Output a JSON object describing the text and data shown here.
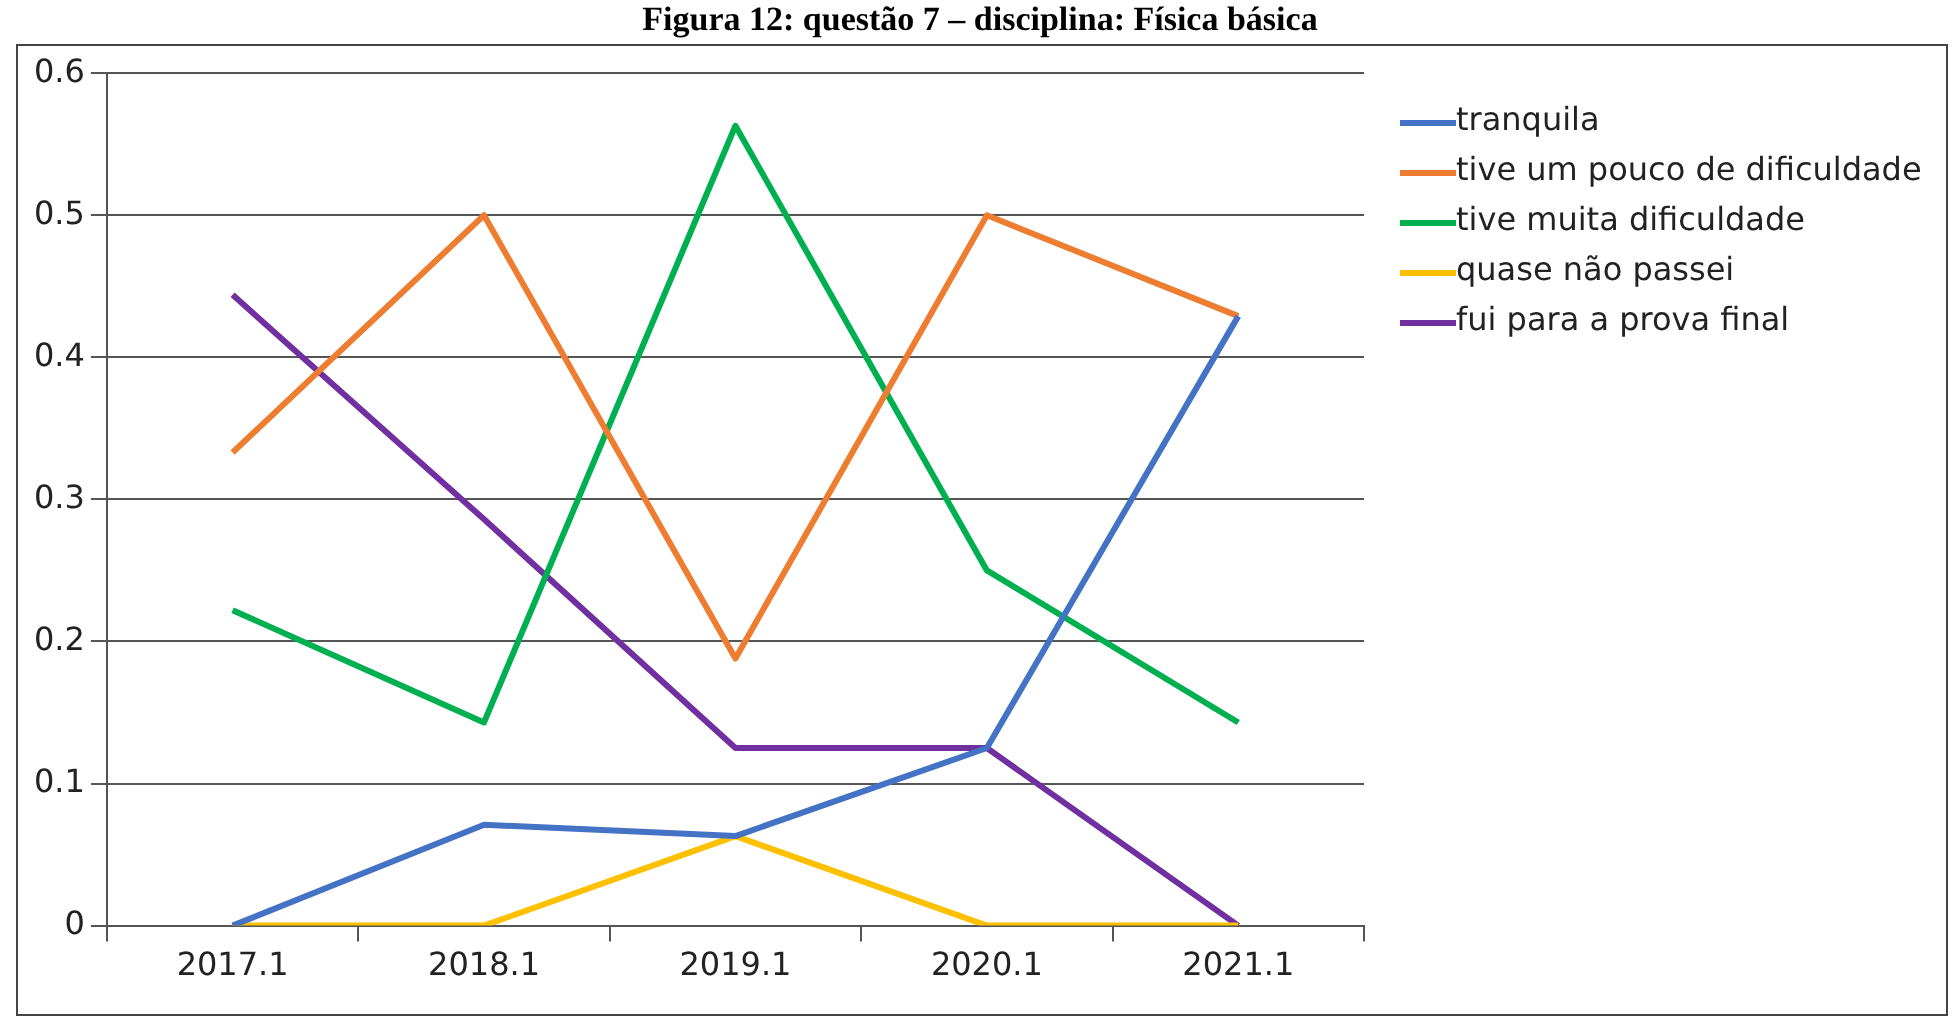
{
  "chart_data": {
    "type": "line",
    "title": "Figura 12: questão 7 – disciplina: Física básica",
    "categories": [
      "2017.1",
      "2018.1",
      "2019.1",
      "2020.1",
      "2021.1"
    ],
    "series": [
      {
        "name": "tranquila",
        "color": "#4472c4",
        "values": [
          0,
          0.071,
          0.063,
          0.125,
          0.429
        ]
      },
      {
        "name": "tive um pouco de dificuldade",
        "color": "#ed7d31",
        "values": [
          0.333,
          0.5,
          0.188,
          0.5,
          0.429
        ]
      },
      {
        "name": "tive muita dificuldade",
        "color": "#00b050",
        "values": [
          0.222,
          0.143,
          0.563,
          0.25,
          0.143
        ]
      },
      {
        "name": "quase não passei",
        "color": "#ffc000",
        "values": [
          0,
          0,
          0.063,
          0,
          0
        ]
      },
      {
        "name": "fui para a prova final",
        "color": "#7030a0",
        "values": [
          0.444,
          0.286,
          0.125,
          0.125,
          0
        ]
      }
    ],
    "ylim": [
      0,
      0.6
    ],
    "yticks": [
      0,
      0.1,
      0.2,
      0.3,
      0.4,
      0.5,
      0.6
    ],
    "grid": "y",
    "legend": "right",
    "marker": "none",
    "line_style": "solid"
  }
}
